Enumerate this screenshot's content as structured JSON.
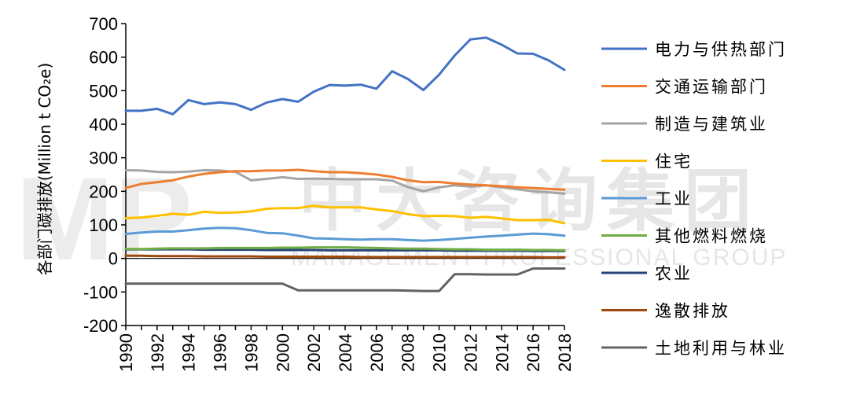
{
  "chart_data": {
    "type": "line",
    "title": "",
    "xlabel": "",
    "ylabel": "各部门碳排放(Million t CO₂e)",
    "ylim": [
      -200,
      700
    ],
    "yticks": [
      -200,
      -100,
      0,
      100,
      200,
      300,
      400,
      500,
      600,
      700
    ],
    "x": [
      1990,
      1991,
      1992,
      1993,
      1994,
      1995,
      1996,
      1997,
      1998,
      1999,
      2000,
      2001,
      2002,
      2003,
      2004,
      2005,
      2006,
      2007,
      2008,
      2009,
      2010,
      2011,
      2012,
      2013,
      2014,
      2015,
      2016,
      2017,
      2018
    ],
    "xtick_labels": [
      "1990",
      "1992",
      "1994",
      "1996",
      "1998",
      "2000",
      "2002",
      "2004",
      "2006",
      "2008",
      "2010",
      "2012",
      "2014",
      "2016",
      "2018"
    ],
    "legend_position": "right",
    "series": [
      {
        "name": "电力与供热部门",
        "color": "#4472c4",
        "values": [
          440,
          440,
          446,
          430,
          472,
          460,
          465,
          460,
          443,
          465,
          475,
          467,
          497,
          517,
          515,
          518,
          506,
          558,
          535,
          502,
          548,
          605,
          653,
          658,
          637,
          611,
          610,
          590,
          562
        ]
      },
      {
        "name": "交通运输部门",
        "color": "#ed7d31",
        "values": [
          210,
          222,
          227,
          233,
          244,
          252,
          257,
          260,
          260,
          262,
          262,
          264,
          260,
          257,
          257,
          254,
          250,
          243,
          233,
          227,
          228,
          223,
          220,
          218,
          215,
          212,
          210,
          207,
          205
        ]
      },
      {
        "name": "制造与建筑业",
        "color": "#a5a5a5",
        "values": [
          263,
          262,
          258,
          257,
          259,
          263,
          262,
          258,
          233,
          237,
          242,
          237,
          238,
          237,
          236,
          236,
          236,
          232,
          213,
          200,
          212,
          218,
          214,
          218,
          212,
          206,
          200,
          197,
          193
        ]
      },
      {
        "name": "住宅",
        "color": "#ffc000",
        "values": [
          120,
          122,
          127,
          133,
          130,
          139,
          136,
          137,
          140,
          148,
          150,
          150,
          157,
          152,
          152,
          152,
          146,
          141,
          132,
          126,
          127,
          126,
          121,
          124,
          119,
          114,
          114,
          115,
          105
        ]
      },
      {
        "name": "工业",
        "color": "#5b9bd5",
        "values": [
          73,
          77,
          80,
          80,
          84,
          89,
          91,
          90,
          84,
          76,
          75,
          68,
          60,
          59,
          57,
          56,
          57,
          57,
          55,
          53,
          55,
          58,
          62,
          65,
          68,
          71,
          74,
          72,
          68
        ]
      },
      {
        "name": "其他燃料燃烧",
        "color": "#70ad47",
        "values": [
          28,
          28,
          29,
          30,
          30,
          30,
          31,
          31,
          31,
          31,
          32,
          32,
          33,
          33,
          33,
          32,
          31,
          30,
          29,
          29,
          28,
          27,
          27,
          26,
          26,
          26,
          25,
          25,
          24
        ]
      },
      {
        "name": "农业",
        "color": "#264478",
        "values": [
          27,
          27,
          27,
          27,
          27,
          26,
          26,
          26,
          26,
          25,
          25,
          25,
          25,
          24,
          24,
          24,
          24,
          24,
          24,
          24,
          24,
          23,
          23,
          23,
          23,
          23,
          22,
          22,
          22
        ]
      },
      {
        "name": "逸散排放",
        "color": "#9e480e",
        "values": [
          8,
          8,
          7,
          7,
          7,
          6,
          6,
          6,
          6,
          5,
          5,
          5,
          5,
          5,
          5,
          4,
          4,
          4,
          4,
          4,
          4,
          4,
          4,
          4,
          4,
          4,
          4,
          3,
          3
        ]
      },
      {
        "name": "土地利用与林业",
        "color": "#636363",
        "values": [
          -75,
          -75,
          -75,
          -75,
          -75,
          -75,
          -75,
          -75,
          -75,
          -75,
          -75,
          -95,
          -95,
          -95,
          -95,
          -95,
          -95,
          -95,
          -96,
          -97,
          -97,
          -47,
          -47,
          -48,
          -48,
          -48,
          -30,
          -30,
          -30
        ]
      }
    ]
  },
  "watermark": {
    "logo": "MP",
    "cn": "中大咨询集团",
    "en": "MANAGEMENT PROFESSIONAL GROUP"
  }
}
